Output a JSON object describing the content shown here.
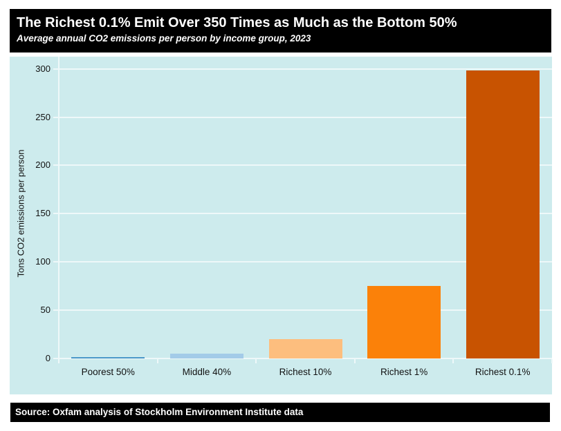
{
  "chart_data": {
    "type": "bar",
    "title": "The Richest 0.1% Emit Over 350 Times as Much as the Bottom 50%",
    "subtitle": "Average annual CO2 emissions per person by income group, 2023",
    "ylabel": "Tons CO2 emissions per person",
    "xlabel": "",
    "categories": [
      "Poorest 50%",
      "Middle 40%",
      "Richest 10%",
      "Richest 1%",
      "Richest 0.1%"
    ],
    "values": [
      0.85,
      5,
      20,
      75,
      298
    ],
    "bar_colors": [
      "#4a98c9",
      "#a3cbe8",
      "#fdbe7e",
      "#fb8109",
      "#c85301"
    ],
    "yticks": [
      0,
      50,
      100,
      150,
      200,
      250,
      300
    ],
    "ylim": [
      0,
      312
    ],
    "grid": true,
    "legend": "none",
    "plot_background": "#cdebed",
    "gridline_color": "#eef8f9"
  },
  "source": {
    "text": "Source: Oxfam analysis of Stockholm Environment Institute data"
  }
}
